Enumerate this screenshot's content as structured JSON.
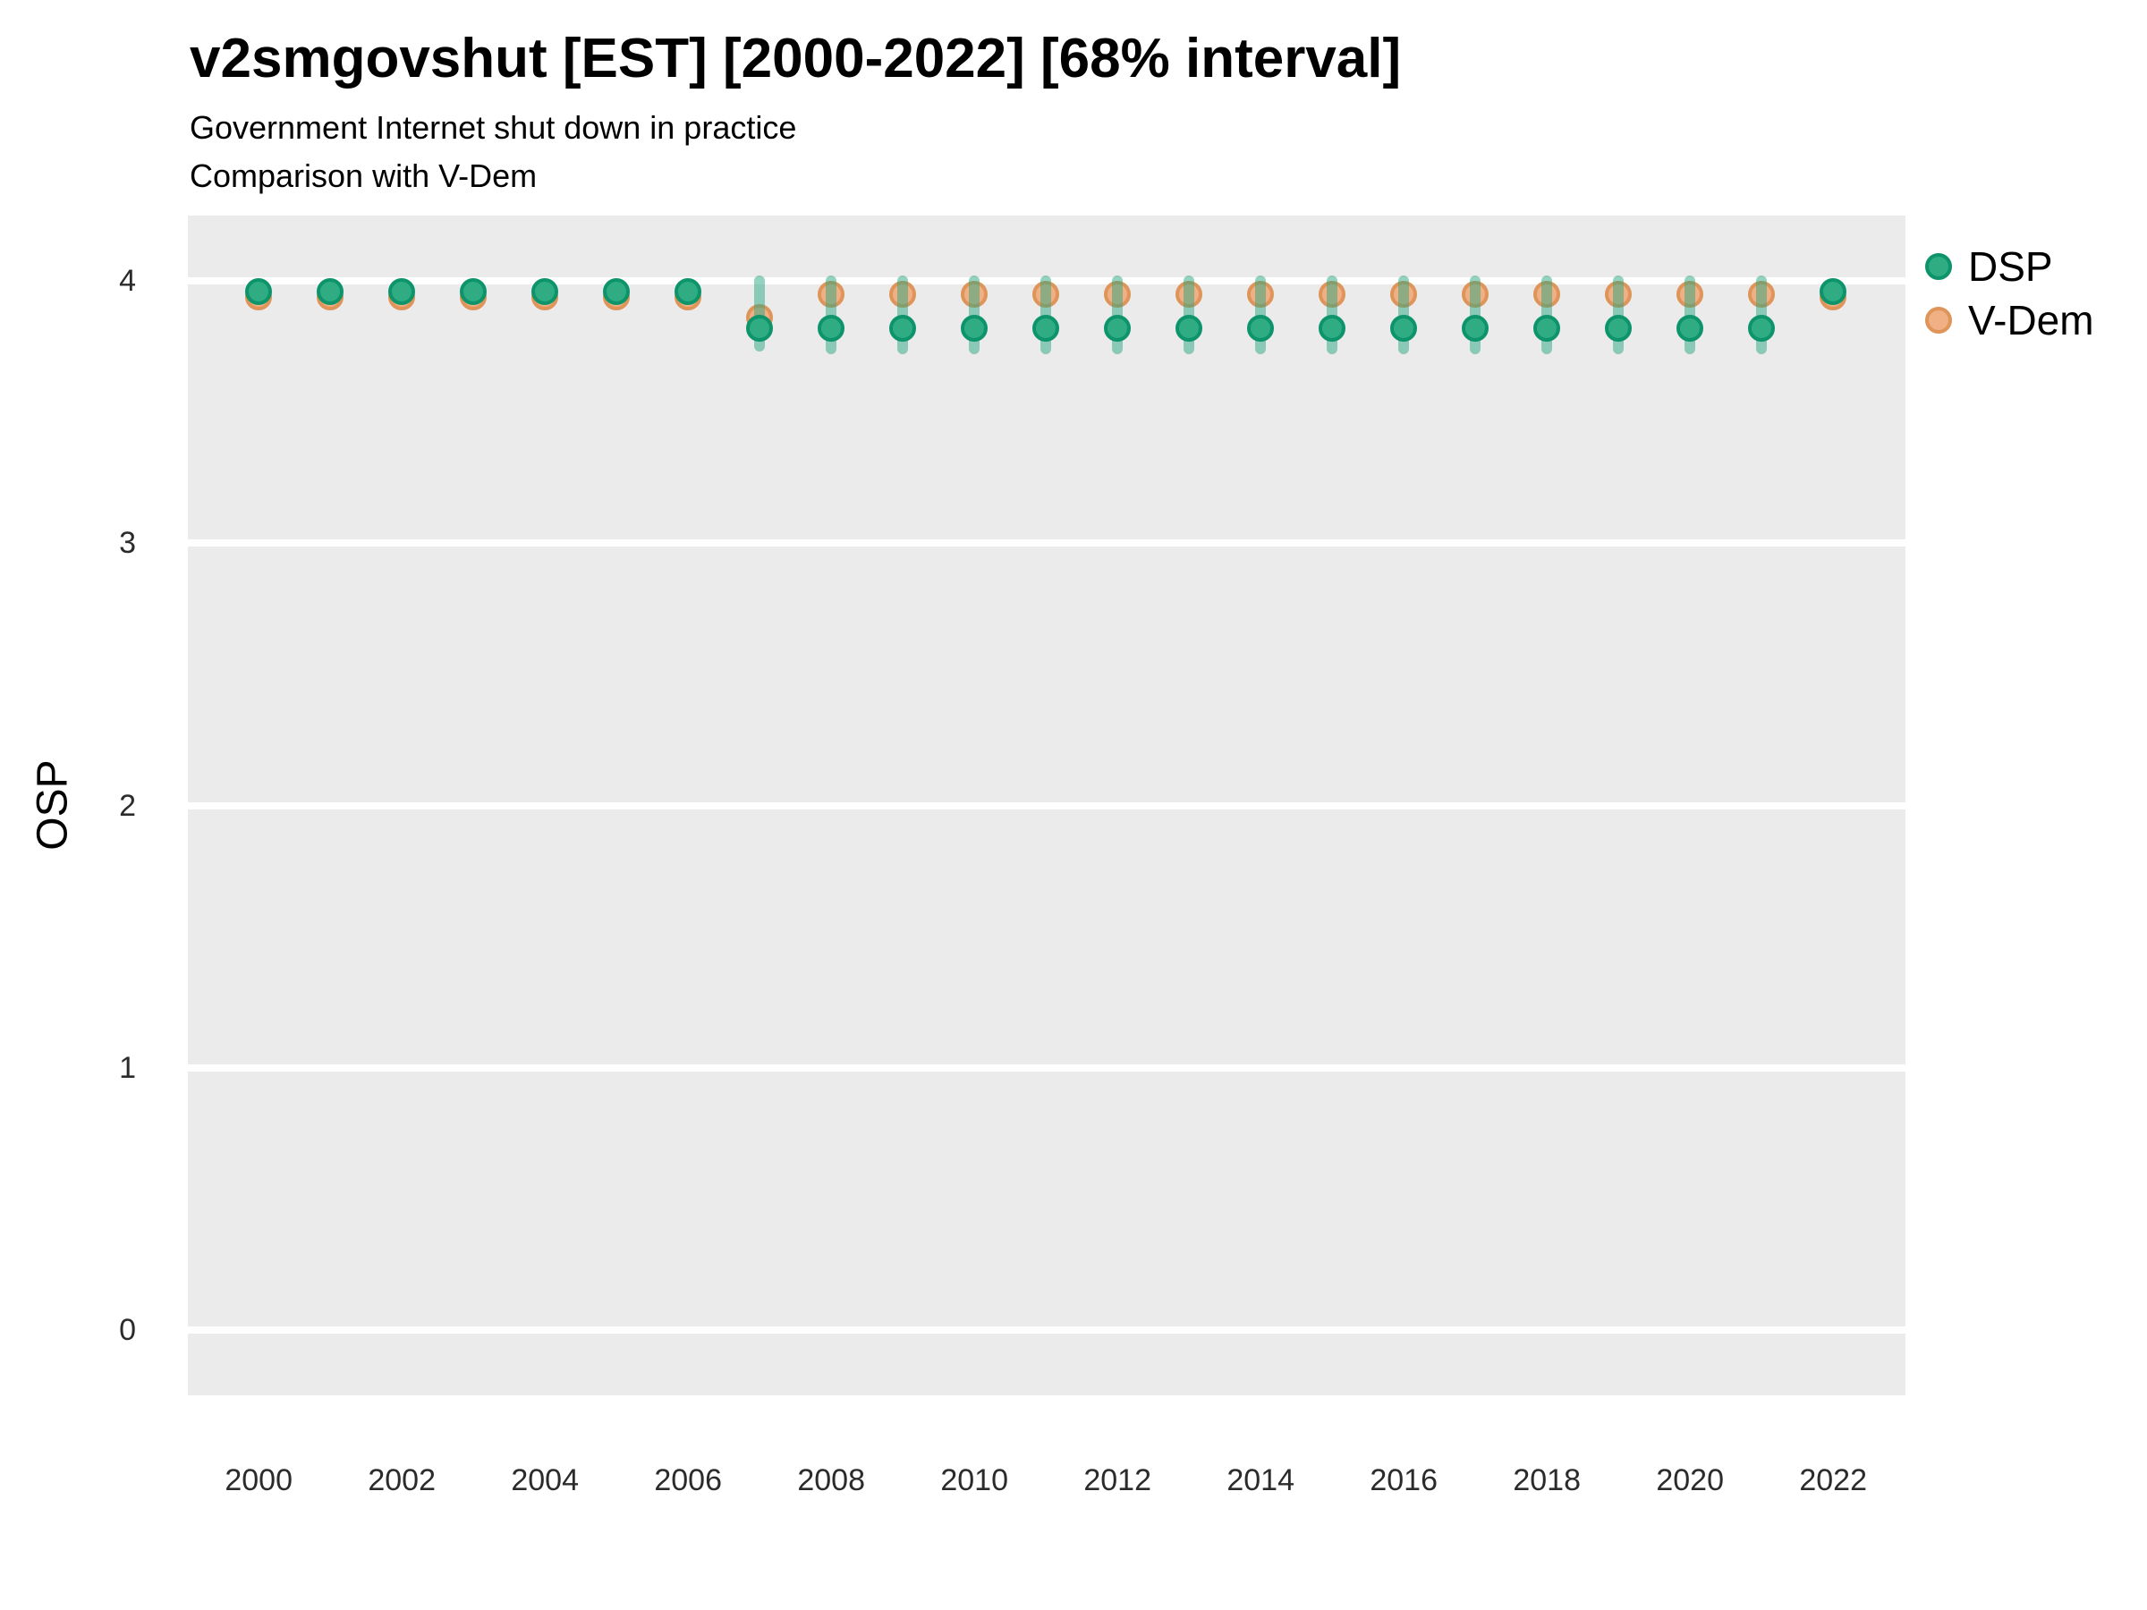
{
  "title": "v2smgovshut [EST] [2000-2022] [68% interval]",
  "subtitle_line1": "Government Internet shut down in practice",
  "subtitle_line2": "Comparison with V-Dem",
  "y_axis_title": "OSP",
  "legend": {
    "position": "right-top",
    "items": [
      {
        "label": "DSP",
        "fill": "#2FAC82",
        "stroke": "#0D946A"
      },
      {
        "label": "V-Dem",
        "fill": "#F0B083",
        "stroke": "#DF9459"
      }
    ]
  },
  "colors": {
    "panel_background": "#EBEBEB",
    "gridline": "#FFFFFF",
    "dsp_fill": "#2FAC82",
    "dsp_stroke": "#0D946A",
    "vdem_fill": "#F0B083",
    "vdem_stroke": "#DF9459",
    "dsp_interval": "rgba(44,168,131,0.5)",
    "text": "#000000",
    "tick_text": "#2B2B2B"
  },
  "chart_data": {
    "type": "scatter",
    "title": "v2smgovshut [EST] [2000-2022] [68% interval]",
    "subtitle": [
      "Government Internet shut down in practice",
      "Comparison with V-Dem"
    ],
    "xlabel": "",
    "ylabel": "OSP",
    "interval_label": "68% interval",
    "grid": "horizontal-major-only",
    "legend_position": "right-top",
    "xlim": [
      1999.01,
      2023.01
    ],
    "ylim": [
      -0.25,
      4.25
    ],
    "xticks": [
      2000,
      2002,
      2004,
      2006,
      2008,
      2010,
      2012,
      2014,
      2016,
      2018,
      2020,
      2022
    ],
    "yticks": [
      0,
      1,
      2,
      3,
      4
    ],
    "x": [
      2000,
      2001,
      2002,
      2003,
      2004,
      2005,
      2006,
      2007,
      2008,
      2009,
      2010,
      2011,
      2012,
      2013,
      2014,
      2015,
      2016,
      2017,
      2018,
      2019,
      2020,
      2021,
      2022
    ],
    "series": [
      {
        "name": "DSP",
        "values": [
          3.96,
          3.96,
          3.96,
          3.96,
          3.96,
          3.96,
          3.96,
          3.82,
          3.82,
          3.82,
          3.82,
          3.82,
          3.82,
          3.82,
          3.82,
          3.82,
          3.82,
          3.82,
          3.82,
          3.82,
          3.82,
          3.82,
          3.96
        ],
        "interval_low": [
          null,
          null,
          null,
          null,
          null,
          null,
          null,
          3.73,
          3.72,
          3.72,
          3.72,
          3.72,
          3.72,
          3.72,
          3.72,
          3.72,
          3.72,
          3.72,
          3.72,
          3.72,
          3.72,
          3.72,
          null
        ],
        "interval_high": [
          null,
          null,
          null,
          null,
          null,
          null,
          null,
          4.02,
          4.02,
          4.02,
          4.02,
          4.02,
          4.02,
          4.02,
          4.02,
          4.02,
          4.02,
          4.02,
          4.02,
          4.02,
          4.02,
          4.02,
          null
        ]
      },
      {
        "name": "V-Dem",
        "values": [
          3.94,
          3.94,
          3.94,
          3.94,
          3.94,
          3.94,
          3.94,
          3.86,
          3.95,
          3.95,
          3.95,
          3.95,
          3.95,
          3.95,
          3.95,
          3.95,
          3.95,
          3.95,
          3.95,
          3.95,
          3.95,
          3.95,
          3.94
        ]
      }
    ]
  }
}
